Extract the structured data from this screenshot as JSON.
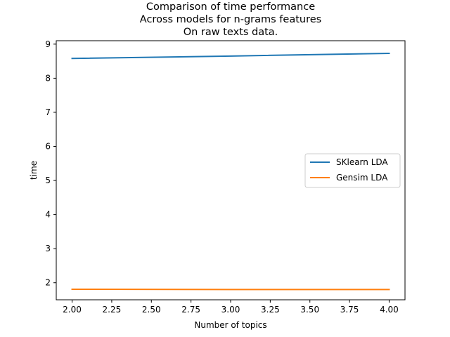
{
  "chart_data": {
    "type": "line",
    "title_lines": [
      "Comparison of time performance",
      "Across models for n-grams features",
      "On raw texts data."
    ],
    "xlabel": "Number of topics",
    "ylabel": "time",
    "xlim": [
      1.9,
      4.1
    ],
    "ylim": [
      1.5,
      9.1
    ],
    "xticks": [
      2.0,
      2.25,
      2.5,
      2.75,
      3.0,
      3.25,
      3.5,
      3.75,
      4.0
    ],
    "xtick_labels": [
      "2.00",
      "2.25",
      "2.50",
      "2.75",
      "3.00",
      "3.25",
      "3.50",
      "3.75",
      "4.00"
    ],
    "yticks": [
      2,
      3,
      4,
      5,
      6,
      7,
      8,
      9
    ],
    "ytick_labels": [
      "2",
      "3",
      "4",
      "5",
      "6",
      "7",
      "8",
      "9"
    ],
    "grid": false,
    "legend_position": "center-right",
    "series": [
      {
        "name": "SKlearn LDA",
        "color": "#1f77b4",
        "x": [
          2,
          3,
          4
        ],
        "y": [
          8.58,
          8.65,
          8.73
        ]
      },
      {
        "name": "Gensim LDA",
        "color": "#ff7f0e",
        "x": [
          2,
          3,
          4
        ],
        "y": [
          1.81,
          1.8,
          1.8
        ]
      }
    ]
  }
}
